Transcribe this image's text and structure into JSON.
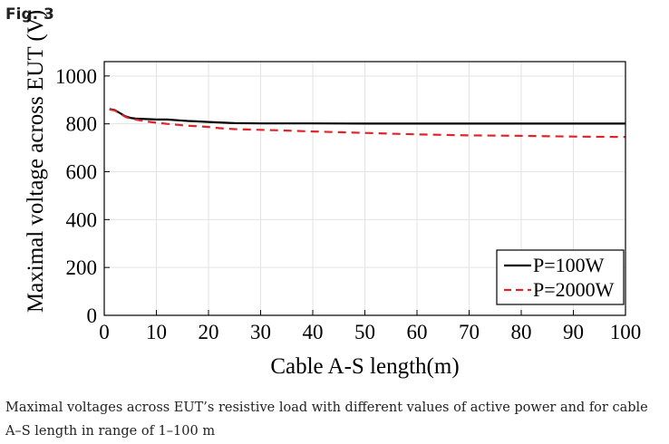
{
  "figure": {
    "label": "Fig. 3",
    "caption": "Maximal voltages across EUT’s resistive load with different values of active power and for cable A–S length in range of 1–100 m"
  },
  "chart_data": {
    "type": "line",
    "title": "",
    "xlabel": "Cable A-S length(m)",
    "ylabel": "Maximal voltage across EUT (V)",
    "xlim": [
      0,
      100
    ],
    "ylim": [
      0,
      1060
    ],
    "xticks": [
      0,
      10,
      20,
      30,
      40,
      50,
      60,
      70,
      80,
      90,
      100
    ],
    "yticks": [
      0,
      200,
      400,
      600,
      800,
      1000
    ],
    "grid": true,
    "legend_position": "bottom-right",
    "series": [
      {
        "name": "P=100W",
        "color": "#000000",
        "dash": "solid",
        "x": [
          1,
          2,
          3,
          4,
          5,
          6,
          8,
          10,
          12,
          14,
          16,
          18,
          20,
          22,
          25,
          30,
          40,
          50,
          60,
          70,
          80,
          90,
          100
        ],
        "y": [
          862,
          858,
          845,
          832,
          825,
          822,
          820,
          818,
          818,
          815,
          812,
          810,
          808,
          806,
          803,
          802,
          802,
          801,
          801,
          801,
          801,
          801,
          801
        ]
      },
      {
        "name": "P=2000W",
        "color": "#e0242a",
        "dash": "dashed",
        "x": [
          1,
          2,
          3,
          4,
          5,
          6,
          8,
          10,
          12,
          14,
          16,
          18,
          20,
          22,
          25,
          30,
          35,
          40,
          45,
          50,
          60,
          70,
          80,
          90,
          100
        ],
        "y": [
          860,
          856,
          843,
          830,
          822,
          818,
          810,
          805,
          800,
          796,
          792,
          790,
          787,
          782,
          778,
          775,
          772,
          768,
          765,
          762,
          756,
          752,
          750,
          747,
          745
        ]
      }
    ]
  }
}
